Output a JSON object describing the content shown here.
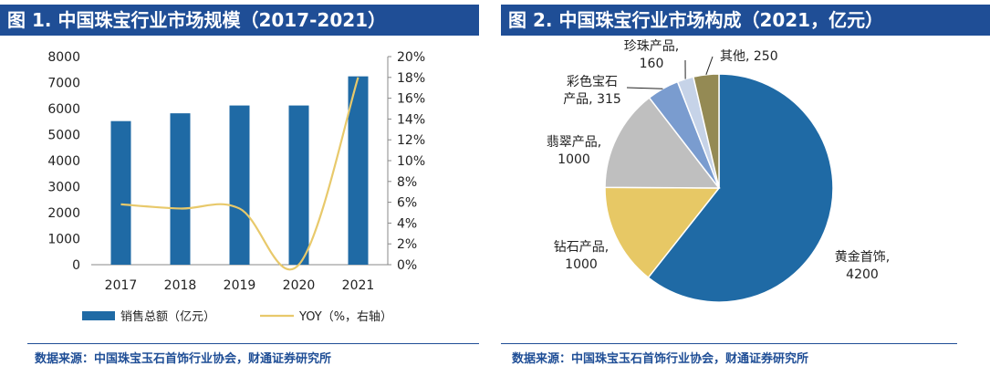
{
  "left_panel": {
    "title": "图 1. 中国珠宝行业市场规模（2017-2021）",
    "source": "数据来源：中国珠宝玉石首饰行业协会，财通证券研究所"
  },
  "right_panel": {
    "title": "图 2. 中国珠宝行业市场构成（2021，亿元）",
    "source": "数据来源：中国珠宝玉石首饰行业协会，财通证券研究所"
  },
  "chart_data": [
    {
      "type": "bar",
      "categories": [
        "2017",
        "2018",
        "2019",
        "2020",
        "2021"
      ],
      "series": [
        {
          "name": "销售总额（亿元）",
          "type": "bar",
          "axis": "left",
          "values": [
            5520,
            5820,
            6120,
            6120,
            7240
          ],
          "color": "#1f6aa5"
        },
        {
          "name": "YOY（%，右轴）",
          "type": "line",
          "axis": "right",
          "values": [
            5.8,
            5.4,
            5.4,
            0.0,
            18.0
          ],
          "color": "#e8c96b"
        }
      ],
      "y_left": {
        "min": 0,
        "max": 8000,
        "ticks": [
          "0",
          "1000",
          "2000",
          "3000",
          "4000",
          "5000",
          "6000",
          "7000",
          "8000"
        ]
      },
      "y_right": {
        "min": 0,
        "max": 20,
        "ticks": [
          "0%",
          "2%",
          "4%",
          "6%",
          "8%",
          "10%",
          "12%",
          "14%",
          "16%",
          "18%",
          "20%"
        ]
      },
      "grid": false,
      "legend_position": "bottom"
    },
    {
      "type": "pie",
      "slices": [
        {
          "label": "黄金首饰",
          "value": 4200,
          "value_text": "4200",
          "color": "#1f6aa5"
        },
        {
          "label": "钻石产品",
          "value": 1000,
          "value_text": "1000",
          "color": "#e7c865"
        },
        {
          "label": "翡翠产品",
          "value": 1000,
          "value_text": "1000",
          "color": "#bfbfbf"
        },
        {
          "label": "彩色宝石产品",
          "value": 315,
          "value_text": "315",
          "color": "#7a9ccf"
        },
        {
          "label": "珍珠产品",
          "value": 160,
          "value_text": "160",
          "color": "#c6d3e8"
        },
        {
          "label": "其他",
          "value": 250,
          "value_text": "250",
          "color": "#948a54"
        }
      ],
      "label_texts": {
        "gold": [
          "黄金首饰,",
          "4200"
        ],
        "diamond": [
          "钻石产品,",
          "1000"
        ],
        "jade": [
          "翡翠产品,",
          "1000"
        ],
        "gem": [
          "彩色宝石",
          "产品, 315"
        ],
        "pearl": [
          "珍珠产品,",
          "160"
        ],
        "other": [
          "其他, 250"
        ]
      }
    }
  ]
}
